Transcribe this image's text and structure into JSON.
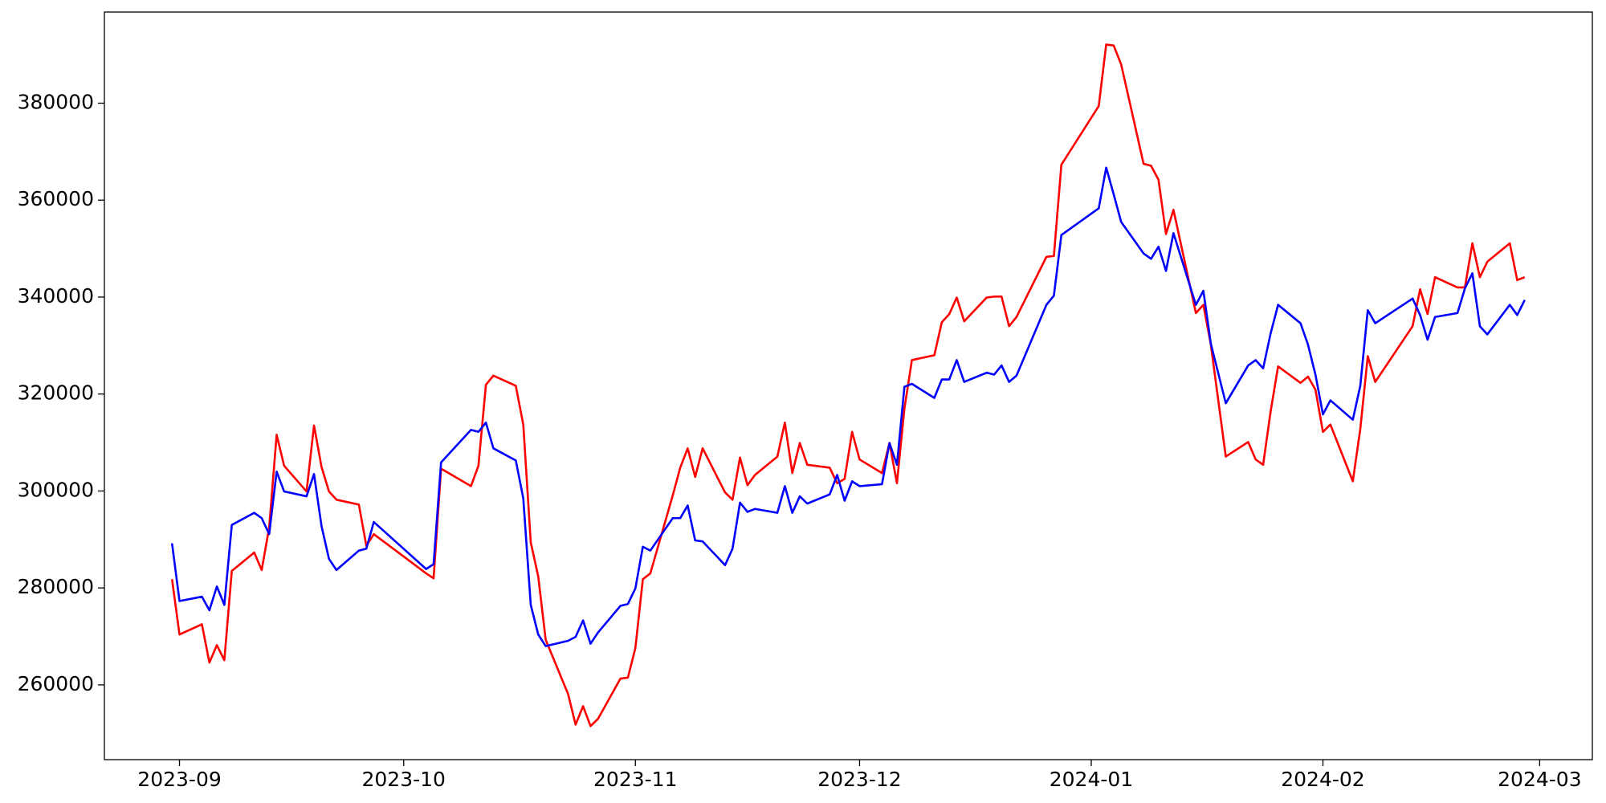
{
  "chart_data": {
    "type": "line",
    "x": [
      -1,
      0,
      3,
      4,
      5,
      6,
      7,
      10,
      11,
      12,
      13,
      14,
      17,
      18,
      19,
      20,
      21,
      24,
      25,
      26,
      33,
      34,
      35,
      39,
      40,
      41,
      42,
      45,
      46,
      47,
      48,
      49,
      52,
      53,
      54,
      55,
      56,
      59,
      60,
      61,
      62,
      63,
      66,
      67,
      68,
      69,
      70,
      73,
      74,
      75,
      76,
      77,
      80,
      81,
      82,
      83,
      84,
      87,
      88,
      89,
      90,
      91,
      94,
      95,
      96,
      97,
      98,
      101,
      102,
      103,
      104,
      105,
      108,
      109,
      110,
      111,
      112,
      116,
      117,
      118,
      123,
      124,
      125,
      126,
      129,
      130,
      131,
      132,
      133,
      136,
      137,
      138,
      140,
      143,
      144,
      145,
      146,
      147,
      150,
      151,
      152,
      153,
      154,
      157,
      158,
      159,
      160,
      165,
      166,
      167,
      168,
      171,
      172,
      173,
      174,
      175,
      178,
      179,
      180
    ],
    "series": [
      {
        "color": "#ff0000",
        "values": [
          281800,
          270400,
          272500,
          264600,
          268200,
          265100,
          283500,
          287300,
          283700,
          292500,
          311600,
          305200,
          299900,
          313500,
          305000,
          299900,
          298200,
          297200,
          288700,
          291100,
          283000,
          282000,
          304600,
          301000,
          305200,
          321900,
          323800,
          321700,
          313700,
          289400,
          282400,
          269300,
          258100,
          251800,
          255600,
          251500,
          253000,
          261300,
          261500,
          267600,
          281800,
          283000,
          299100,
          304800,
          308800,
          302900,
          308800,
          299700,
          298200,
          306900,
          301200,
          303300,
          307100,
          314100,
          303700,
          309900,
          305400,
          304800,
          301600,
          302500,
          312200,
          306500,
          303700,
          309900,
          301600,
          317000,
          327000,
          328000,
          334800,
          336500,
          339900,
          335000,
          339900,
          340100,
          340100,
          334000,
          335900,
          348300,
          348500,
          367300,
          379400,
          392100,
          391900,
          388000,
          367500,
          367100,
          364200,
          353000,
          358000,
          336700,
          338400,
          330200,
          307100,
          310100,
          306500,
          305400,
          316400,
          325700,
          322300,
          323600,
          320900,
          312200,
          313700,
          302000,
          312800,
          327800,
          322500,
          334000,
          341600,
          336500,
          344100,
          342000,
          342000,
          351100,
          344100,
          347300,
          351100,
          343500,
          344100
        ]
      },
      {
        "color": "#0000ff",
        "values": [
          289200,
          277300,
          278200,
          275400,
          280300,
          276500,
          293000,
          295500,
          294400,
          291100,
          304000,
          299900,
          298900,
          303500,
          292800,
          286000,
          283700,
          287700,
          288100,
          293600,
          283900,
          284900,
          305900,
          312600,
          312200,
          314100,
          308800,
          306300,
          298500,
          276500,
          270400,
          268000,
          269100,
          269900,
          273300,
          268500,
          270800,
          276300,
          276700,
          279900,
          288500,
          287700,
          294400,
          294400,
          297000,
          289800,
          289600,
          284700,
          288100,
          297600,
          295700,
          296300,
          295500,
          301000,
          295500,
          298900,
          297400,
          299300,
          303300,
          298000,
          302000,
          301000,
          301400,
          309900,
          305400,
          321500,
          322100,
          319200,
          323000,
          323000,
          327000,
          322500,
          324400,
          324000,
          325900,
          322500,
          323800,
          338400,
          340300,
          352800,
          358300,
          366700,
          361200,
          355500,
          349000,
          347900,
          350400,
          345400,
          353200,
          338400,
          341300,
          330400,
          318100,
          325900,
          327000,
          325300,
          332500,
          338400,
          334600,
          330200,
          324000,
          315800,
          318700,
          314700,
          321700,
          337300,
          334600,
          339700,
          336300,
          331200,
          335900,
          336700,
          341800,
          344900,
          334000,
          332300,
          338400,
          336300,
          339400
        ]
      }
    ],
    "xlim": [
      -10.05,
      189.05
    ],
    "xticks": [
      {
        "value": 0,
        "label": "2023-09"
      },
      {
        "value": 30,
        "label": "2023-10"
      },
      {
        "value": 61,
        "label": "2023-11"
      },
      {
        "value": 91,
        "label": "2023-12"
      },
      {
        "value": 122,
        "label": "2024-01"
      },
      {
        "value": 153,
        "label": "2024-02"
      },
      {
        "value": 182,
        "label": "2024-03"
      }
    ],
    "ylim": [
      244580,
      398800
    ],
    "yticks": [
      260000,
      280000,
      300000,
      320000,
      340000,
      360000,
      380000
    ],
    "grid": false
  }
}
